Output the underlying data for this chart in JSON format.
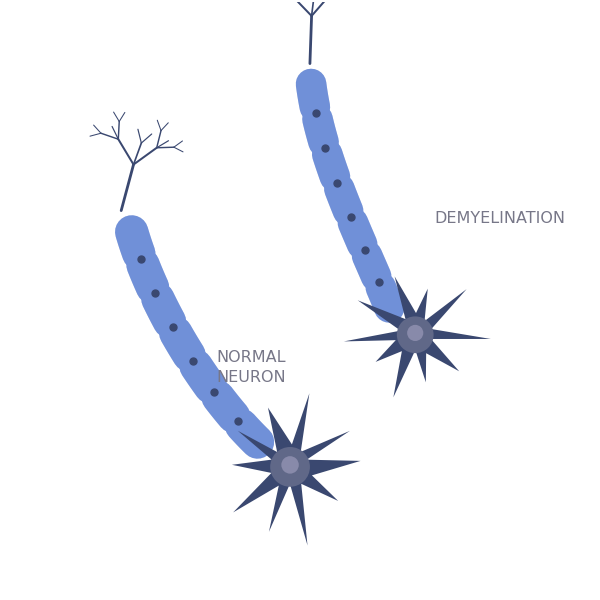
{
  "bg_color": "#ffffff",
  "axon_color": "#7090d8",
  "axon_dark": "#5570b8",
  "node_color": "#3a4870",
  "soma_color": "#3a4870",
  "soma_center_color": "#606888",
  "soma_inner_color": "#888aaa",
  "dendrite_color": "#3a4870",
  "label_color": "#777788",
  "label_normal": "NORMAL\nNEURON",
  "label_demyelin": "DEMYELINATION",
  "label_fontsize": 11.5,
  "fig_width": 6.0,
  "fig_height": 6.0,
  "dpi": 100
}
